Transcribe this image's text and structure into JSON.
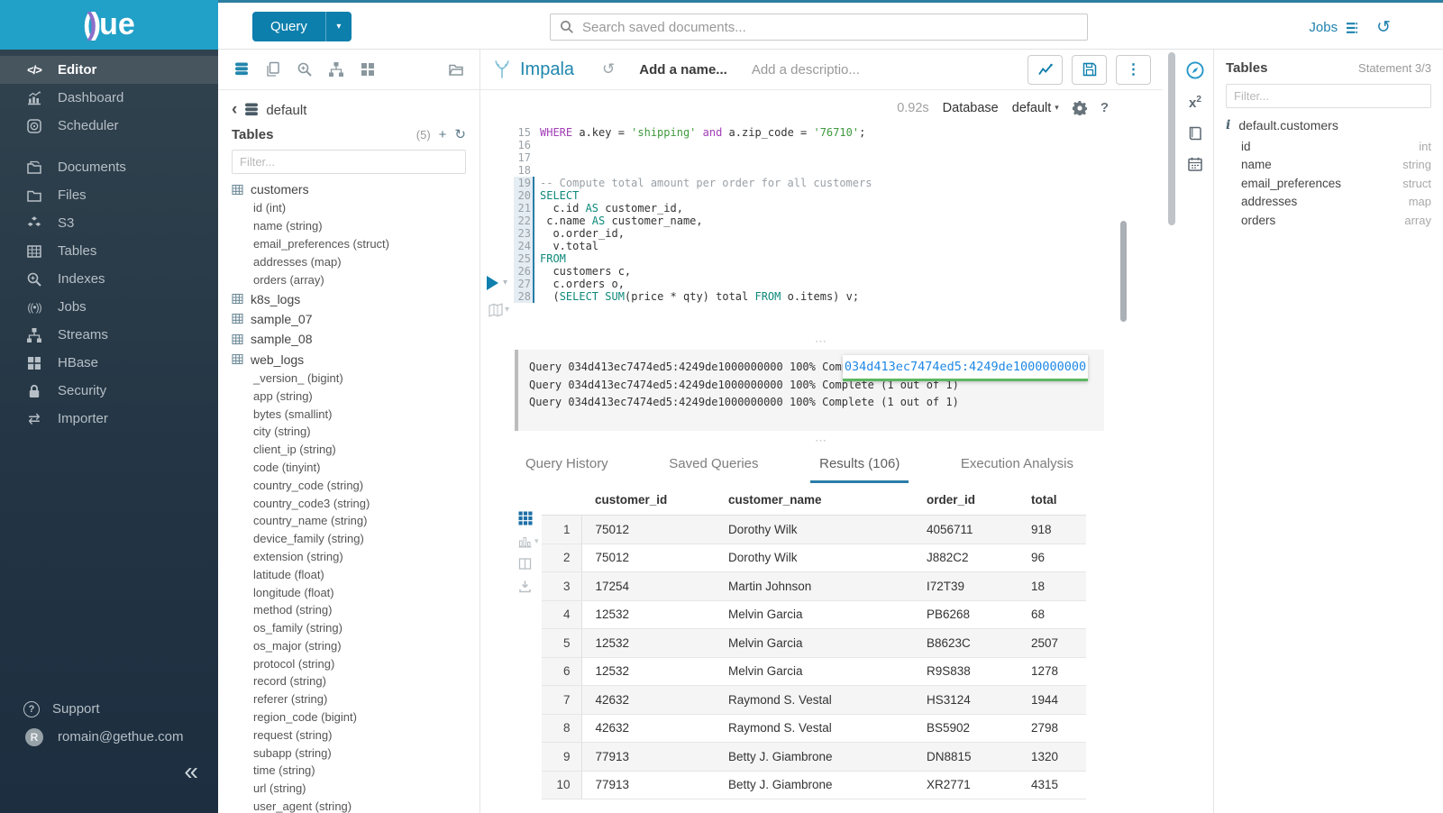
{
  "topbar": {
    "query_button": "Query",
    "search_placeholder": "Search saved documents...",
    "jobs_label": "Jobs"
  },
  "sidebar": {
    "logo": {
      "open": "(",
      "accent": ")",
      "rest": "ue"
    },
    "items": [
      {
        "label": "Editor",
        "icon": "code-icon",
        "active": true
      },
      {
        "label": "Dashboard",
        "icon": "dashboard-icon"
      },
      {
        "label": "Scheduler",
        "icon": "scheduler-icon"
      },
      {
        "spacer": true
      },
      {
        "label": "Documents",
        "icon": "documents-icon"
      },
      {
        "label": "Files",
        "icon": "files-icon"
      },
      {
        "label": "S3",
        "icon": "s3-icon"
      },
      {
        "label": "Tables",
        "icon": "tables-icon"
      },
      {
        "label": "Indexes",
        "icon": "indexes-icon"
      },
      {
        "label": "Jobs",
        "icon": "jobs-icon"
      },
      {
        "label": "Streams",
        "icon": "streams-icon"
      },
      {
        "label": "HBase",
        "icon": "hbase-icon"
      },
      {
        "label": "Security",
        "icon": "security-icon"
      },
      {
        "label": "Importer",
        "icon": "importer-icon"
      }
    ],
    "support_label": "Support",
    "user_email": "romain@gethue.com",
    "avatar_letter": "R",
    "collapse_glyph": "«"
  },
  "left_panel": {
    "breadcrumb_chevron": "‹",
    "breadcrumb_db": "default",
    "tables_title": "Tables",
    "tables_count": "(5)",
    "plus_glyph": "+",
    "refresh_glyph": "↻",
    "filter_placeholder": "Filter...",
    "tree": [
      {
        "name": "customers",
        "columns": [
          "id (int)",
          "name (string)",
          "email_preferences (struct)",
          "addresses (map)",
          "orders (array)"
        ]
      },
      {
        "name": "k8s_logs",
        "columns": []
      },
      {
        "name": "sample_07",
        "columns": []
      },
      {
        "name": "sample_08",
        "columns": []
      },
      {
        "name": "web_logs",
        "columns": [
          "_version_ (bigint)",
          "app (string)",
          "bytes (smallint)",
          "city (string)",
          "client_ip (string)",
          "code (tinyint)",
          "country_code (string)",
          "country_code3 (string)",
          "country_name (string)",
          "device_family (string)",
          "extension (string)",
          "latitude (float)",
          "longitude (float)",
          "method (string)",
          "os_family (string)",
          "os_major (string)",
          "protocol (string)",
          "record (string)",
          "referer (string)",
          "region_code (bigint)",
          "request (string)",
          "subapp (string)",
          "time (string)",
          "url (string)",
          "user_agent (string)"
        ]
      }
    ]
  },
  "editor": {
    "engine": "Impala",
    "undo_glyph": "↺",
    "name_placeholder": "Add a name...",
    "description_placeholder": "Add a descriptio...",
    "exec_time": "0.92s",
    "database_label": "Database",
    "database_value": "default",
    "caret_glyph": "▾",
    "highlight_from": 19,
    "code_lines": [
      {
        "n": 15,
        "segs": [
          {
            "c": "p",
            "t": "WHERE"
          },
          {
            "c": "t",
            "t": " a.key = "
          },
          {
            "c": "s",
            "t": "'shipping'"
          },
          {
            "c": "t",
            "t": " "
          },
          {
            "c": "p",
            "t": "and"
          },
          {
            "c": "t",
            "t": " a.zip_code = "
          },
          {
            "c": "s",
            "t": "'76710'"
          },
          {
            "c": "t",
            "t": ";"
          }
        ]
      },
      {
        "n": 16,
        "segs": []
      },
      {
        "n": 17,
        "segs": []
      },
      {
        "n": 18,
        "segs": []
      },
      {
        "n": 19,
        "segs": [
          {
            "c": "c",
            "t": "-- Compute total amount per order for all customers"
          }
        ]
      },
      {
        "n": 20,
        "segs": [
          {
            "c": "k",
            "t": "SELECT"
          }
        ]
      },
      {
        "n": 21,
        "segs": [
          {
            "c": "t",
            "t": "  c.id "
          },
          {
            "c": "k",
            "t": "AS"
          },
          {
            "c": "t",
            "t": " customer_id,"
          }
        ]
      },
      {
        "n": 22,
        "segs": [
          {
            "c": "t",
            "t": " c.name "
          },
          {
            "c": "k",
            "t": "AS"
          },
          {
            "c": "t",
            "t": " customer_name,"
          }
        ]
      },
      {
        "n": 23,
        "segs": [
          {
            "c": "t",
            "t": "  o.order_id,"
          }
        ]
      },
      {
        "n": 24,
        "segs": [
          {
            "c": "t",
            "t": "  v.total"
          }
        ]
      },
      {
        "n": 25,
        "segs": [
          {
            "c": "k",
            "t": "FROM"
          }
        ]
      },
      {
        "n": 26,
        "segs": [
          {
            "c": "t",
            "t": "  customers c,"
          }
        ]
      },
      {
        "n": 27,
        "segs": [
          {
            "c": "t",
            "t": "  c.orders o,"
          }
        ]
      },
      {
        "n": 28,
        "segs": [
          {
            "c": "t",
            "t": "  ("
          },
          {
            "c": "k",
            "t": "SELECT"
          },
          {
            "c": "t",
            "t": " "
          },
          {
            "c": "k",
            "t": "SUM"
          },
          {
            "c": "t",
            "t": "(price * qty) total "
          },
          {
            "c": "k",
            "t": "FROM"
          },
          {
            "c": "t",
            "t": " o.items) v;"
          }
        ]
      }
    ]
  },
  "logs": {
    "resize_handle": "⋯",
    "lines": [
      "Query 034d413ec7474ed5:4249de1000000000 100% Complete (1 out of 1)",
      "Query 034d413ec7474ed5:4249de1000000000 100% Complete (1 out of 1)",
      "Query 034d413ec7474ed5:4249de1000000000 100% Complete (1 out of 1)"
    ],
    "popover_text": "034d413ec7474ed5:4249de1000000000"
  },
  "result_tabs": [
    {
      "label": "Query History",
      "active": false
    },
    {
      "label": "Saved Queries",
      "active": false
    },
    {
      "label": "Results (106)",
      "active": true
    },
    {
      "label": "Execution Analysis",
      "active": false
    }
  ],
  "results": {
    "columns": [
      "customer_id",
      "customer_name",
      "order_id",
      "total"
    ],
    "rows": [
      [
        "1",
        "75012",
        "Dorothy Wilk",
        "4056711",
        "918"
      ],
      [
        "2",
        "75012",
        "Dorothy Wilk",
        "J882C2",
        "96"
      ],
      [
        "3",
        "17254",
        "Martin Johnson",
        "I72T39",
        "18"
      ],
      [
        "4",
        "12532",
        "Melvin Garcia",
        "PB6268",
        "68"
      ],
      [
        "5",
        "12532",
        "Melvin Garcia",
        "B8623C",
        "2507"
      ],
      [
        "6",
        "12532",
        "Melvin Garcia",
        "R9S838",
        "1278"
      ],
      [
        "7",
        "42632",
        "Raymond S. Vestal",
        "HS3124",
        "1944"
      ],
      [
        "8",
        "42632",
        "Raymond S. Vestal",
        "BS5902",
        "2798"
      ],
      [
        "9",
        "77913",
        "Betty J. Giambrone",
        "DN8815",
        "1320"
      ],
      [
        "10",
        "77913",
        "Betty J. Giambrone",
        "XR2771",
        "4315"
      ]
    ]
  },
  "right_panel": {
    "title": "Tables",
    "statement": "Statement 3/3",
    "filter_placeholder": "Filter...",
    "info_glyph": "i",
    "table_name": "default.customers",
    "columns": [
      {
        "name": "id",
        "type": "int"
      },
      {
        "name": "name",
        "type": "string"
      },
      {
        "name": "email_preferences",
        "type": "struct"
      },
      {
        "name": "addresses",
        "type": "map"
      },
      {
        "name": "orders",
        "type": "array"
      }
    ]
  },
  "colors": {
    "accent": "#0c7fac",
    "logo_bg": "#21a0c8",
    "keyword_teal": "#0e897b",
    "keyword_purple": "#a13db6",
    "string_green": "#3d9a3d",
    "tab_underline": "#2a7da8",
    "popover_blue": "#1e88e5",
    "popover_underline": "#5cb860"
  }
}
